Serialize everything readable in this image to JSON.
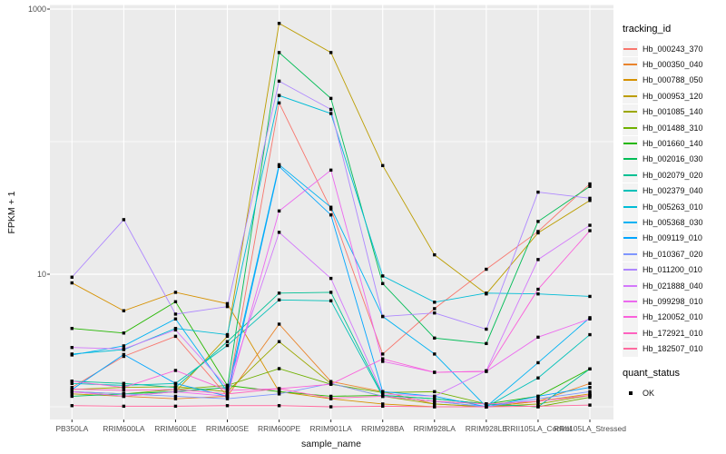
{
  "chart_data": {
    "type": "line",
    "xlabel": "sample_name",
    "ylabel": "FPKM + 1",
    "y_scale": "log10",
    "y_ticks": [
      1000,
      10
    ],
    "y_minor_gridlines": [
      100,
      1
    ],
    "categories": [
      "PB350LA",
      "RRIM600LA",
      "RRIM600LE",
      "RRIM600SE",
      "RRIM600PE",
      "RRIM901LA",
      "RRIM928BA",
      "RRIM928LA",
      "RRIM928LE",
      "RRII105LA_Control",
      "RRII105LA_Stressed"
    ],
    "series": [
      {
        "name": "Hb_000243_370",
        "color": "#F8766D",
        "values": [
          1.4,
          2.4,
          3.4,
          1.2,
          196,
          31,
          2.5,
          5.5,
          10.9,
          21,
          48
        ]
      },
      {
        "name": "Hb_000350_040",
        "color": "#E9842C",
        "values": [
          1.3,
          1.2,
          1.15,
          1.2,
          4.2,
          1.55,
          1.3,
          1.05,
          1.0,
          1.1,
          1.5
        ]
      },
      {
        "name": "Hb_000788_050",
        "color": "#D69100",
        "values": [
          8.6,
          5.3,
          7.3,
          6.0,
          1.3,
          1.15,
          1.05,
          1.0,
          1.0,
          1.1,
          1.25
        ]
      },
      {
        "name": "Hb_000953_120",
        "color": "#BC9D00",
        "values": [
          1.25,
          1.2,
          1.3,
          3.4,
          780,
          470,
          66,
          14,
          7.1,
          20.5,
          36
        ]
      },
      {
        "name": "Hb_001085_140",
        "color": "#9CA700",
        "values": [
          1.35,
          1.4,
          1.42,
          1.3,
          3.1,
          1.5,
          1.2,
          1.05,
          1.0,
          1.05,
          1.22
        ]
      },
      {
        "name": "Hb_001488_310",
        "color": "#6FB000",
        "values": [
          1.3,
          1.25,
          1.35,
          1.45,
          1.94,
          1.48,
          1.28,
          1.3,
          1.05,
          1.0,
          1.18
        ]
      },
      {
        "name": "Hb_001660_140",
        "color": "#24B700",
        "values": [
          3.9,
          3.6,
          6.2,
          1.45,
          1.3,
          1.2,
          1.22,
          1.15,
          1.05,
          1.2,
          1.93
        ]
      },
      {
        "name": "Hb_002016_030",
        "color": "#00BC56",
        "values": [
          1.2,
          1.25,
          1.3,
          1.4,
          470,
          212,
          8.5,
          3.3,
          3.0,
          25,
          46
        ]
      },
      {
        "name": "Hb_002079_020",
        "color": "#00C094",
        "values": [
          1.56,
          1.5,
          1.4,
          3.1,
          7.2,
          7.3,
          1.22,
          1.15,
          1.05,
          1.0,
          1.93
        ]
      },
      {
        "name": "Hb_002379_040",
        "color": "#00C0B8",
        "values": [
          1.5,
          1.45,
          1.5,
          2.9,
          6.4,
          6.3,
          1.2,
          1.1,
          1.0,
          1.65,
          3.5
        ]
      },
      {
        "name": "Hb_005263_010",
        "color": "#00BCD6",
        "values": [
          2.5,
          2.7,
          3.9,
          3.5,
          223,
          163,
          9.7,
          6.15,
          7.2,
          7.1,
          6.8
        ]
      },
      {
        "name": "Hb_005368_030",
        "color": "#00B2F3",
        "values": [
          2.46,
          2.88,
          4.6,
          1.3,
          67,
          32,
          4.8,
          2.5,
          1.0,
          2.15,
          4.7
        ]
      },
      {
        "name": "Hb_009119_010",
        "color": "#00A5FF",
        "values": [
          1.35,
          2.48,
          1.5,
          1.2,
          65,
          28,
          1.3,
          1.2,
          1.0,
          1.2,
          1.4
        ]
      },
      {
        "name": "Hb_010367_020",
        "color": "#7F96FF",
        "values": [
          1.3,
          1.25,
          1.2,
          1.15,
          1.25,
          1.5,
          1.2,
          1.1,
          1.0,
          1.15,
          1.3
        ]
      },
      {
        "name": "Hb_011200_010",
        "color": "#AE87FF",
        "values": [
          9.5,
          25.8,
          5.0,
          5.7,
          286,
          175,
          4.8,
          5.1,
          3.85,
          41.6,
          37.4
        ]
      },
      {
        "name": "Hb_021888_040",
        "color": "#D378FB",
        "values": [
          2.8,
          2.73,
          3.8,
          1.4,
          20.7,
          9.3,
          1.25,
          1.2,
          1.87,
          12.9,
          23.4
        ]
      },
      {
        "name": "Hb_099298_010",
        "color": "#EC69EF",
        "values": [
          1.3,
          1.2,
          1.3,
          1.2,
          30,
          61,
          2.2,
          1.82,
          1.85,
          3.35,
          4.6
        ]
      },
      {
        "name": "Hb_120052_010",
        "color": "#FA61DB",
        "values": [
          1.56,
          1.4,
          1.88,
          1.33,
          1.37,
          1.48,
          2.3,
          1.82,
          1.85,
          7.7,
          21.3
        ]
      },
      {
        "name": "Hb_172921_010",
        "color": "#FF62BF",
        "values": [
          1.36,
          1.33,
          1.35,
          1.25,
          1.37,
          1.16,
          1.2,
          1.1,
          1.05,
          1.1,
          1.22
        ]
      },
      {
        "name": "Hb_182507_010",
        "color": "#FF6B9F",
        "values": [
          1.02,
          1.01,
          1.01,
          1.02,
          1.02,
          1.0,
          1.01,
          1.0,
          1.0,
          1.01,
          1.03
        ]
      }
    ],
    "legend": {
      "title": "tracking_id",
      "position": "right"
    },
    "legend2": {
      "title": "quant_status",
      "items": [
        {
          "label": "OK",
          "marker": "black-square"
        }
      ]
    },
    "point_marker": "black-square",
    "style": {
      "panel_bg": "#EBEBEB",
      "grid_color": "#FFFFFF",
      "tick_color": "#333333",
      "tick_label_color": "#4D4D4D",
      "point_color": "#000000"
    }
  }
}
